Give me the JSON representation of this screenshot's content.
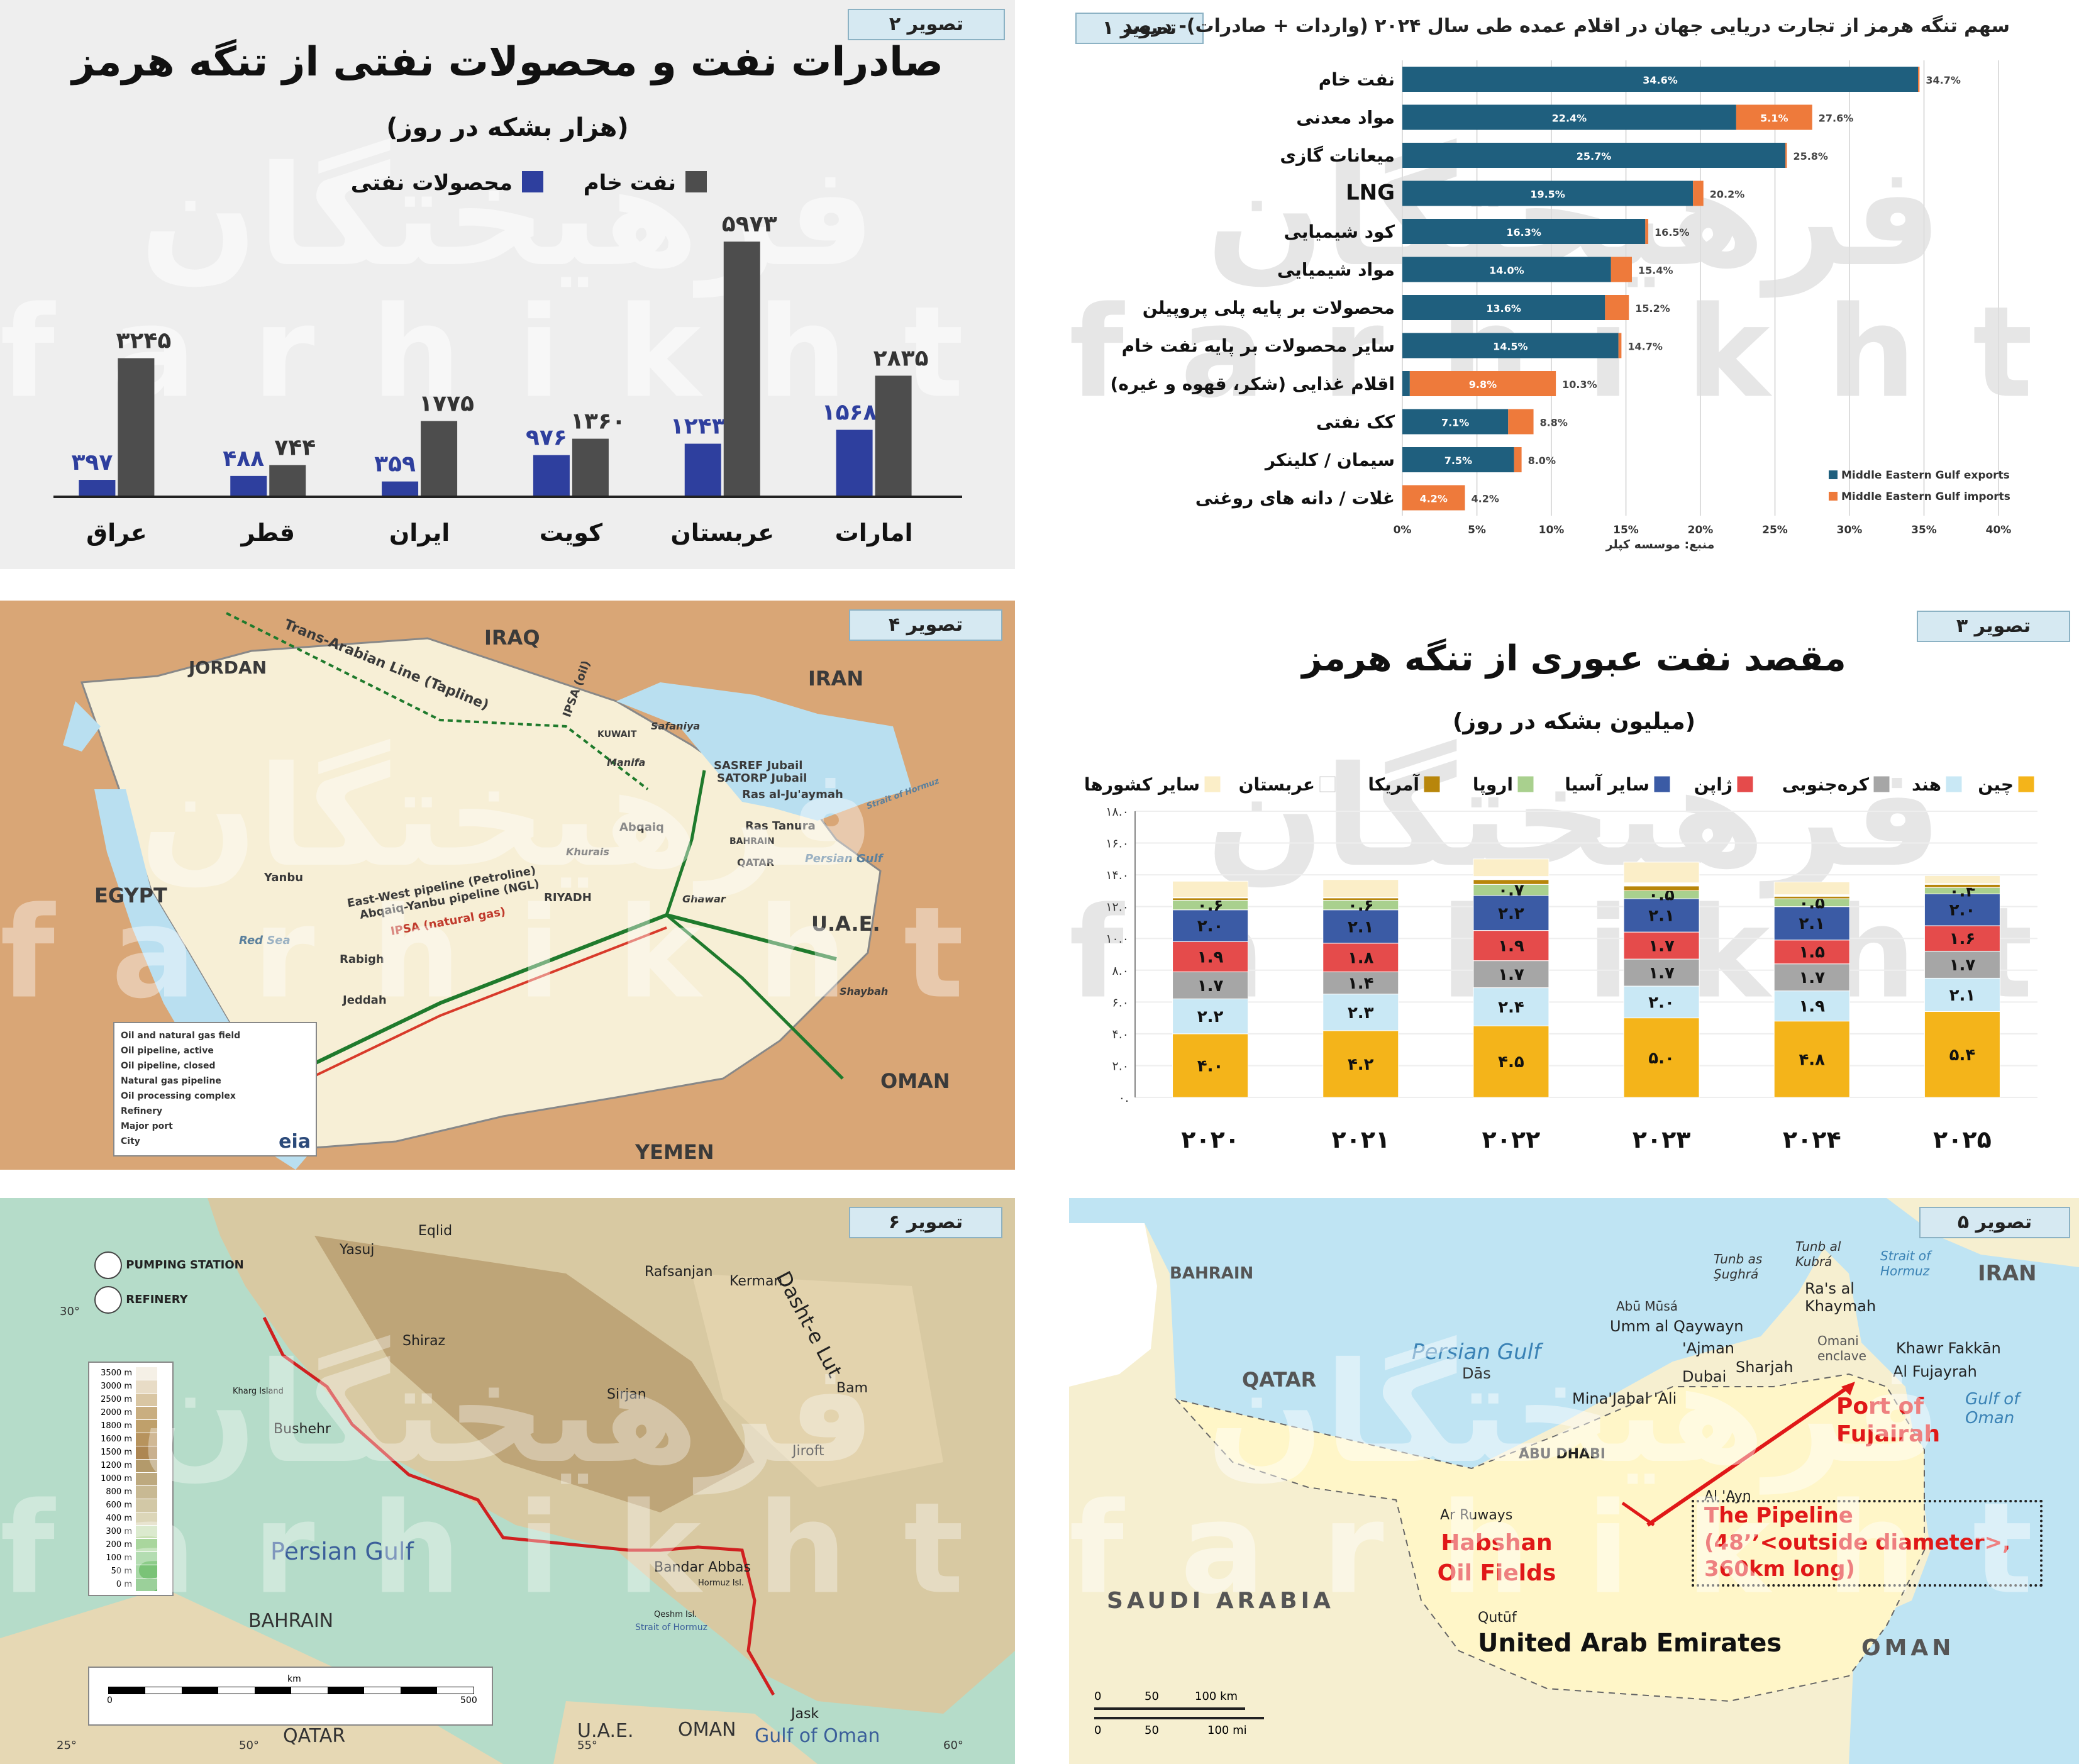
{
  "panel1": {
    "ribbon": "تصویر ۱",
    "title": "سهم تنگه هرمز از تجارت دریایی جهان در اقلام عمده طی سال ۲۰۲۴ (واردات + صادرات)- درصد",
    "source": "منبع: موسسه کپلر",
    "watermark_fa": "فرهیختگان",
    "watermark_en": "farhikhtegan",
    "colors": {
      "exports": "#1f5f7e",
      "imports": "#ee7a3b"
    },
    "chart_data": {
      "type": "bar",
      "orientation": "horizontal",
      "stacked": true,
      "categories": [
        "نفت خام",
        "مواد معدنی",
        "میعانات گازی",
        "LNG",
        "کود شیمیایی",
        "مواد شیمیایی",
        "محصولات بر پایه پلی پروپیلن",
        "سایر محصولات بر پایه نفت خام",
        "اقلام غذایی (شکر، قهوه و غیره)",
        "کک نفتی",
        "سیمان / کلینکر",
        "غلات / دانه های روغنی"
      ],
      "series": [
        {
          "name": "Middle Eastern Gulf exports",
          "values": [
            34.6,
            22.4,
            25.7,
            19.5,
            16.3,
            14.0,
            13.6,
            14.5,
            0.5,
            7.1,
            7.5,
            0.0
          ],
          "labels": [
            "34.6%",
            "22.4%",
            "25.7%",
            "19.5%",
            "16.3%",
            "14.0%",
            "13.6%",
            "14.5%",
            "",
            "7.1%",
            "7.5%",
            ""
          ]
        },
        {
          "name": "Middle Eastern Gulf imports",
          "values": [
            0.1,
            5.1,
            0.1,
            0.7,
            0.2,
            1.4,
            1.6,
            0.2,
            9.8,
            1.7,
            0.5,
            4.2
          ],
          "labels": [
            "",
            "5.1%",
            "",
            "",
            "",
            "",
            "",
            "",
            "9.8%",
            "",
            "",
            "4.2%"
          ]
        }
      ],
      "totals": [
        "34.7%",
        "27.6%",
        "25.8%",
        "20.2%",
        "16.5%",
        "15.4%",
        "15.2%",
        "14.7%",
        "10.3%",
        "8.8%",
        "8.0%",
        "4.2%"
      ],
      "xlim": [
        0,
        40
      ],
      "xticks": [
        "0%",
        "5%",
        "10%",
        "15%",
        "20%",
        "25%",
        "30%",
        "35%",
        "40%"
      ],
      "legend_position": "bottom-right"
    }
  },
  "panel2": {
    "ribbon": "تصویر ۲",
    "title": "صادرات نفت و محصولات نفتی از تنگه هرمز",
    "subtitle": "(هزار بشکه در روز)",
    "watermark_fa": "فرهیختگان",
    "watermark_en": "farhikhtegan",
    "colors": {
      "products": "#2e3f9e",
      "crude": "#4d4d4d"
    },
    "chart_data": {
      "type": "bar",
      "categories": [
        "امارات",
        "عربستان",
        "کویت",
        "ایران",
        "قطر",
        "عراق"
      ],
      "series": [
        {
          "name": "محصولات نفتی",
          "values": [
            1568,
            1243,
            976,
            359,
            488,
            397
          ],
          "labels": [
            "۱۵۶۸",
            "۱۲۴۳",
            "۹۷۶",
            "۳۵۹",
            "۴۸۸",
            "۳۹۷"
          ]
        },
        {
          "name": "نفت خام",
          "values": [
            2835,
            5973,
            1360,
            1775,
            744,
            3245
          ],
          "labels": [
            "۲۸۳۵",
            "۵۹۷۳",
            "۱۳۶۰",
            "۱۷۷۵",
            "۷۴۴",
            "۳۲۴۵"
          ]
        }
      ],
      "ylim": [
        0,
        6200
      ],
      "legend_position": "top"
    }
  },
  "panel3": {
    "ribbon": "تصویر ۳",
    "title": "مقصد نفت عبوری از تنگه هرمز",
    "subtitle": "(میلیون بشکه در روز)",
    "watermark_fa": "فرهیختگان",
    "watermark_en": "farhikhtegan",
    "chart_data": {
      "type": "bar",
      "stacked": true,
      "categories": [
        "۲۰۲۰",
        "۲۰۲۱",
        "۲۰۲۲",
        "۲۰۲۳",
        "۲۰۲۴",
        "۲۰۲۵"
      ],
      "series": [
        {
          "name": "چین",
          "color": "#f4b41a",
          "values": [
            4.0,
            4.2,
            4.5,
            5.0,
            4.8,
            5.4
          ],
          "labels": [
            "۴.۰",
            "۴.۲",
            "۴.۵",
            "۵.۰",
            "۴.۸",
            "۵.۴"
          ]
        },
        {
          "name": "هند",
          "color": "#c9e8f5",
          "values": [
            2.2,
            2.3,
            2.4,
            2.0,
            1.9,
            2.1
          ],
          "labels": [
            "۲.۲",
            "۲.۳",
            "۲.۴",
            "۲.۰",
            "۱.۹",
            "۲.۱"
          ]
        },
        {
          "name": "کره‌جنوبی",
          "color": "#a6a6a6",
          "values": [
            1.7,
            1.4,
            1.7,
            1.7,
            1.7,
            1.7
          ],
          "labels": [
            "۱.۷",
            "۱.۴",
            "۱.۷",
            "۱.۷",
            "۱.۷",
            "۱.۷"
          ]
        },
        {
          "name": "ژاپن",
          "color": "#e54b4b",
          "values": [
            1.9,
            1.8,
            1.9,
            1.7,
            1.5,
            1.6
          ],
          "labels": [
            "۱.۹",
            "۱.۸",
            "۱.۹",
            "۱.۷",
            "۱.۵",
            "۱.۶"
          ]
        },
        {
          "name": "سایر آسیا",
          "color": "#3b5ba5",
          "values": [
            2.0,
            2.1,
            2.2,
            2.1,
            2.1,
            2.0
          ],
          "labels": [
            "۲.۰",
            "۲.۱",
            "۲.۲",
            "۲.۱",
            "۲.۱",
            "۲.۰"
          ]
        },
        {
          "name": "اروپا",
          "color": "#a9d08e",
          "values": [
            0.6,
            0.6,
            0.7,
            0.5,
            0.5,
            0.4
          ],
          "labels": [
            "۰.۶",
            "۰.۶",
            "۰.۷",
            "۰.۵",
            "۰.۵",
            "۰.۴"
          ]
        },
        {
          "name": "آمریکا",
          "color": "#b8860b",
          "values": [
            0.15,
            0.15,
            0.3,
            0.3,
            0.15,
            0.2
          ],
          "labels": [
            "",
            "",
            "",
            "",
            "",
            ""
          ]
        },
        {
          "name": "عربستان",
          "color": "#ffffff",
          "values": [
            0.05,
            0.05,
            0.2,
            0.2,
            0.1,
            0.05
          ],
          "labels": [
            "",
            "",
            "",
            "",
            "",
            ""
          ]
        },
        {
          "name": "سایر کشورها",
          "color": "#fbeec8",
          "values": [
            1.0,
            1.1,
            1.1,
            1.3,
            0.8,
            0.5
          ],
          "labels": [
            "",
            "",
            "",
            "",
            "",
            ""
          ]
        }
      ],
      "ylim": [
        0,
        18
      ],
      "yticks": [
        "۰.",
        "۲.۰",
        "۴.۰",
        "۶.۰",
        "۸.۰",
        "۱۰.۰",
        "۱۲.۰",
        "۱۴.۰",
        "۱۶.۰",
        "۱۸.۰"
      ],
      "legend_position": "top"
    }
  },
  "panel4": {
    "ribbon": "تصویر ۴",
    "watermark_fa": "فرهیختگان",
    "watermark_en": "farhikhtegan",
    "labels": {
      "iraq": "IRAQ",
      "jordan": "JORDAN",
      "iran": "IRAN",
      "egypt": "EGYPT",
      "uae": "U.A.E.",
      "oman": "OMAN",
      "yemen": "YEMEN",
      "tapline": "Trans-Arabian Line (Tapline)",
      "ipsa_oil": "IPSA (oil)",
      "kuwait": "KUWAIT",
      "safaniya": "Safaniya",
      "manifa": "Manifa",
      "sasref": "SASREF Jubail",
      "satorp": "SATORP Jubail",
      "rasjuaymah": "Ras al-Ju'aymah",
      "rastanura": "Ras Tanura",
      "bahrain": "BAHRAIN",
      "qatar": "QATAR",
      "abqaiq": "Abqaiq",
      "khurais": "Khurais",
      "riyadh": "RIYADH",
      "ghawar": "Ghawar",
      "persian_gulf": "Persian Gulf",
      "strait": "Strait of Hormuz",
      "yanbu": "Yanbu",
      "ew_pipeline": "East-West pipeline (Petroline)",
      "ay_pipeline": "Abqaiq-Yanbu pipeline (NGL)",
      "ipsa_gas": "IPSA (natural gas)",
      "red_sea": "Red Sea",
      "rabigh": "Rabigh",
      "jeddah": "Jeddah",
      "shaybah": "Shaybah",
      "eia": "eia"
    },
    "legend": [
      "Oil and natural gas field",
      "Oil pipeline, active",
      "Oil pipeline, closed",
      "Natural gas pipeline",
      "Oil processing complex",
      "Refinery",
      "Major port",
      "City"
    ]
  },
  "panel5": {
    "ribbon": "تصویر ۵",
    "watermark_fa": "فرهیختگان",
    "watermark_en": "farhikhtegan",
    "labels": {
      "bahrain": "BAHRAIN",
      "iran": "IRAN",
      "qatar": "QATAR",
      "persian_gulf": "Persian Gulf",
      "das": "Dās",
      "tunb": "Tunb as Şughrá",
      "tunbk": "Tunb al Kubrá",
      "strait": "Strait of Hormuz",
      "abumusa": "Abū Mūsá",
      "rasalkhaymah": "Ra's al Khaymah",
      "ummalqaywayn": "Umm al Qaywayn",
      "ajman": "'Ajman",
      "sharjah": "Sharjah",
      "dubai": "Dubai",
      "omani": "Omani enclave",
      "khawr": "Khawr Fakkān",
      "fujayrah": "Al Fujayrah",
      "minajabal": "Mina'Jabal 'Ali",
      "port": "Port of Fujairah",
      "gulfofoman": "Gulf of Oman",
      "abudhabi": "ABU DHABI",
      "alain": "Al 'Ayn",
      "arruways": "Ar Ruways",
      "habshan": "Habshan Oil Fields",
      "pipeline1": "The Pipeline",
      "pipeline2": "(48’’<outside diameter>,",
      "pipeline3": "360km long)",
      "saudi": "SAUDI ARABIA",
      "qutuf": "Qutūf",
      "uae": "United Arab Emirates",
      "oman": "OMAN",
      "scale_km": "100 km",
      "scale_mi": "100 mi",
      "s0": "0",
      "s50": "50",
      "s50b": "50",
      "s0b": "0"
    }
  },
  "panel6": {
    "ribbon": "تصویر ۶",
    "watermark_fa": "فرهیختگان",
    "watermark_en": "farhikhtegan",
    "labels": {
      "pumping": "PUMPING STATION",
      "refinery": "REFINERY",
      "yasuj": "Yasuj",
      "eqlid": "Eqlid",
      "rafsanjan": "Rafsanjan",
      "kerman": "Kerman",
      "dashte": "Dasht-e Lut",
      "shiraz": "Shiraz",
      "sirjan": "Sirjan",
      "bam": "Bam",
      "jiroft": "Jiroft",
      "bushehr": "Bushehr",
      "khargisland": "Kharg Island",
      "persian_gulf": "Persian Gulf",
      "bandarabbas": "Bandar Abbas",
      "hormuz": "Hormuz Isl.",
      "qeshm": "Qeshm Isl.",
      "strait": "Strait of Hormuz",
      "bahrain": "BAHRAIN",
      "qatar": "QATAR",
      "uae": "U.A.E.",
      "oman": "OMAN",
      "gulfofoman": "Gulf of Oman",
      "jask": "Jask",
      "lat30": "30°",
      "lat25": "25°",
      "lon50": "50°",
      "lon55": "55°",
      "lon60": "60°",
      "scale_km": "km",
      "scale0": "0",
      "scale500": "500"
    },
    "elevations": [
      "3500 m",
      "3000 m",
      "2500 m",
      "2000 m",
      "1800 m",
      "1600 m",
      "1500 m",
      "1200 m",
      "1000 m",
      "800 m",
      "600 m",
      "400 m",
      "300 m",
      "200 m",
      "100 m",
      "50 m",
      "0 m"
    ]
  }
}
